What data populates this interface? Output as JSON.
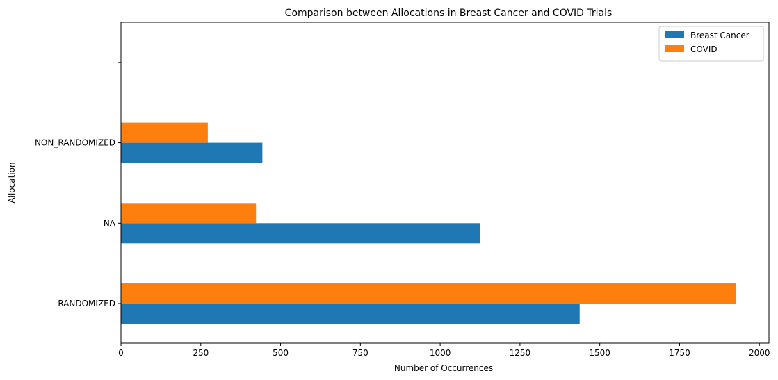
{
  "chart_data": {
    "type": "bar",
    "orientation": "horizontal",
    "title": "Comparison between Allocations in Breast Cancer and COVID Trials",
    "xlabel": "Number of Occurrences",
    "ylabel": "Allocation",
    "categories": [
      "RANDOMIZED",
      "NA",
      "NON_RANDOMIZED",
      ""
    ],
    "series": [
      {
        "name": "Breast Cancer",
        "color": "#1f77b4",
        "values": [
          1437,
          1124,
          443,
          null
        ]
      },
      {
        "name": "COVID",
        "color": "#ff7f0e",
        "values": [
          1927,
          423,
          272,
          null
        ]
      }
    ],
    "xlim": [
      0,
      2030
    ],
    "xticks": [
      0,
      250,
      500,
      750,
      1000,
      1250,
      1500,
      1750,
      2000
    ],
    "xtick_labels": [
      "0",
      "250",
      "500",
      "750",
      "1000",
      "1250",
      "1500",
      "1750",
      "2000"
    ],
    "grid": false,
    "legend_position": "top-right"
  }
}
